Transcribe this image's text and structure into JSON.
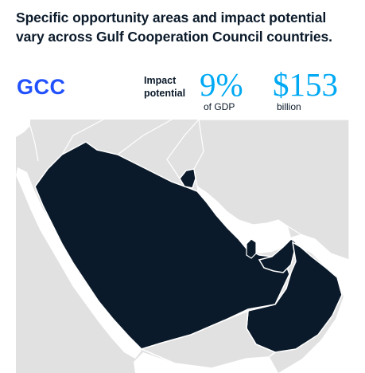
{
  "headline": "Specific opportunity areas and impact potential vary across Gulf Cooperation Council countries.",
  "region": "GCC",
  "impact_label_line1": "Impact",
  "impact_label_line2": "potential",
  "stats": [
    {
      "value": "9%",
      "caption": "of GDP"
    },
    {
      "value": "$153",
      "caption": "billion"
    }
  ],
  "colors": {
    "region_label": "#2251ff",
    "stat_value": "#00a9f4",
    "gcc_land": "#0b1a2a",
    "other_land": "#e1e1e1",
    "water": "#ffffff"
  },
  "map": {
    "highlighted_countries": [
      "Saudi Arabia",
      "Kuwait",
      "Bahrain",
      "Qatar",
      "United Arab Emirates",
      "Oman"
    ]
  }
}
